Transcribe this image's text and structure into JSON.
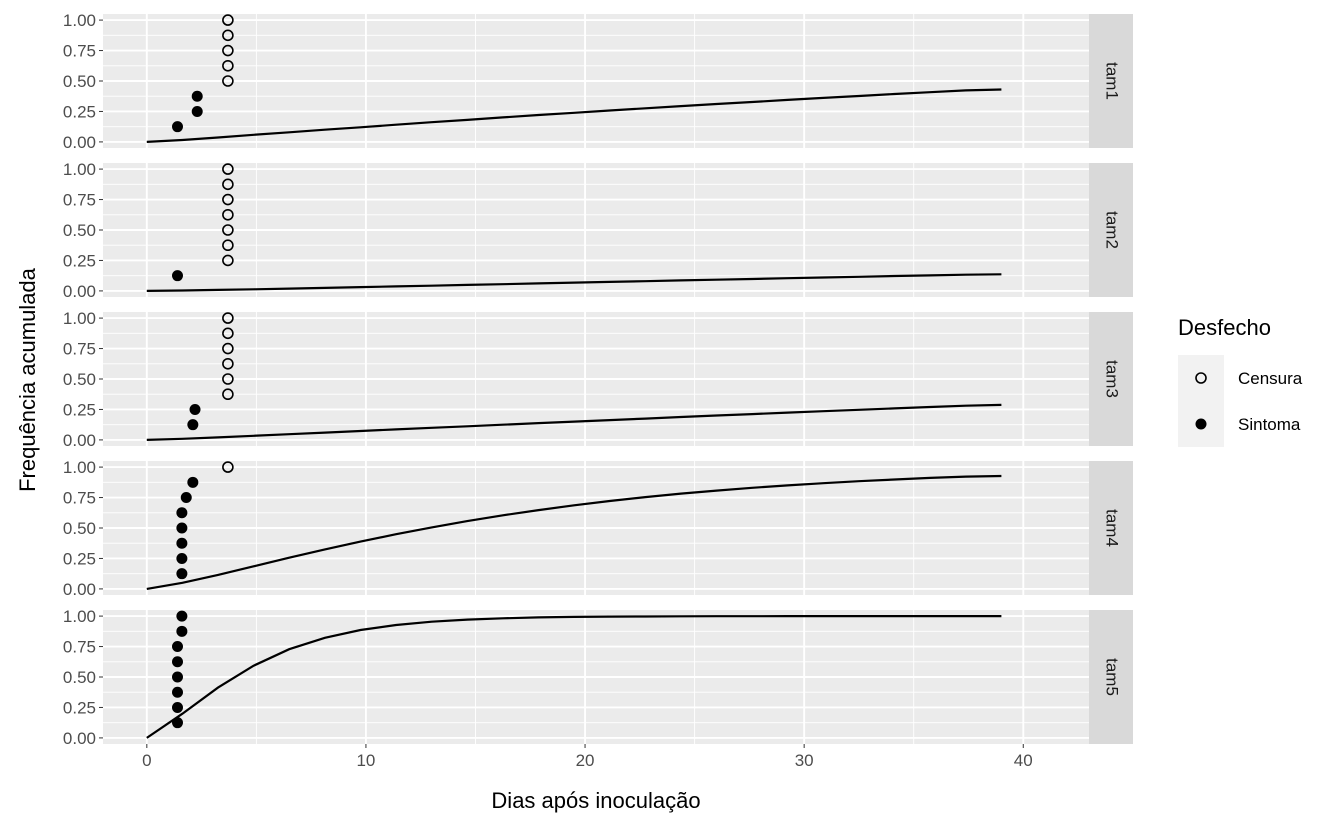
{
  "chart_data": {
    "type": "scatter",
    "xlabel": "Dias após inoculação",
    "ylabel": "Frequência acumulada",
    "xlim": [
      -2,
      43
    ],
    "ylim": [
      -0.05,
      1.05
    ],
    "x_ticks": [
      0,
      10,
      20,
      30,
      40
    ],
    "y_ticks": [
      0.0,
      0.25,
      0.5,
      0.75,
      1.0
    ],
    "x_tick_labels": [
      "0",
      "10",
      "20",
      "30",
      "40"
    ],
    "y_tick_labels": [
      "0.00",
      "0.25",
      "0.50",
      "0.75",
      "1.00"
    ],
    "grid": true,
    "legend": {
      "title": "Desfecho",
      "placement": "right",
      "entries": [
        {
          "label": "Censura",
          "marker": "open-circle"
        },
        {
          "label": "Sintoma",
          "marker": "filled-circle"
        }
      ]
    },
    "colors": {
      "panel_bg": "#ebebeb",
      "grid": "#ffffff",
      "strip_bg": "#d9d9d9",
      "line": "#000000",
      "point": "#000000"
    },
    "panels": [
      {
        "name": "tam1",
        "censura": [
          [
            3.7,
            0.5
          ],
          [
            3.7,
            0.625
          ],
          [
            3.7,
            0.75
          ],
          [
            3.7,
            0.875
          ],
          [
            3.7,
            1.0
          ]
        ],
        "sintoma": [
          [
            1.4,
            0.125
          ],
          [
            2.3,
            0.25
          ],
          [
            2.3,
            0.375
          ]
        ],
        "curve": {
          "x_max": 39,
          "y": [
            0.0,
            0.016,
            0.036,
            0.058,
            0.079,
            0.1,
            0.12,
            0.141,
            0.162,
            0.181,
            0.201,
            0.221,
            0.239,
            0.258,
            0.276,
            0.294,
            0.311,
            0.328,
            0.345,
            0.361,
            0.377,
            0.393,
            0.408,
            0.423,
            0.43
          ]
        }
      },
      {
        "name": "tam2",
        "censura": [
          [
            3.7,
            0.25
          ],
          [
            3.7,
            0.375
          ],
          [
            3.7,
            0.5
          ],
          [
            3.7,
            0.625
          ],
          [
            3.7,
            0.75
          ],
          [
            3.7,
            0.875
          ],
          [
            3.7,
            1.0
          ]
        ],
        "sintoma": [
          [
            1.4,
            0.125
          ]
        ],
        "curve": {
          "x_max": 39,
          "y": [
            0.0,
            0.003,
            0.008,
            0.013,
            0.019,
            0.025,
            0.031,
            0.037,
            0.043,
            0.049,
            0.055,
            0.062,
            0.068,
            0.074,
            0.08,
            0.086,
            0.092,
            0.098,
            0.104,
            0.11,
            0.116,
            0.122,
            0.127,
            0.133,
            0.136
          ]
        }
      },
      {
        "name": "tam3",
        "censura": [
          [
            3.7,
            0.375
          ],
          [
            3.7,
            0.5
          ],
          [
            3.7,
            0.625
          ],
          [
            3.7,
            0.75
          ],
          [
            3.7,
            0.875
          ],
          [
            3.7,
            1.0
          ]
        ],
        "sintoma": [
          [
            2.1,
            0.125
          ],
          [
            2.2,
            0.25
          ]
        ],
        "curve": {
          "x_max": 39,
          "y": [
            0.0,
            0.009,
            0.021,
            0.034,
            0.047,
            0.06,
            0.073,
            0.086,
            0.099,
            0.112,
            0.125,
            0.138,
            0.15,
            0.163,
            0.175,
            0.188,
            0.2,
            0.212,
            0.224,
            0.236,
            0.247,
            0.259,
            0.27,
            0.281,
            0.287
          ]
        }
      },
      {
        "name": "tam4",
        "censura": [
          [
            3.7,
            1.0
          ]
        ],
        "sintoma": [
          [
            1.6,
            0.125
          ],
          [
            1.6,
            0.25
          ],
          [
            1.6,
            0.375
          ],
          [
            1.6,
            0.5
          ],
          [
            1.6,
            0.625
          ],
          [
            1.8,
            0.75
          ],
          [
            2.1,
            0.875
          ]
        ],
        "curve": {
          "x_max": 39,
          "y": [
            0.0,
            0.05,
            0.115,
            0.186,
            0.256,
            0.324,
            0.388,
            0.449,
            0.505,
            0.557,
            0.604,
            0.647,
            0.686,
            0.722,
            0.754,
            0.782,
            0.807,
            0.83,
            0.85,
            0.868,
            0.884,
            0.898,
            0.911,
            0.922,
            0.927
          ]
        }
      },
      {
        "name": "tam5",
        "censura": [],
        "sintoma": [
          [
            1.4,
            0.125
          ],
          [
            1.4,
            0.25
          ],
          [
            1.4,
            0.375
          ],
          [
            1.4,
            0.5
          ],
          [
            1.4,
            0.625
          ],
          [
            1.4,
            0.75
          ],
          [
            1.6,
            0.875
          ],
          [
            1.6,
            1.0
          ]
        ],
        "curve": {
          "x_max": 39,
          "y": [
            0.0,
            0.199,
            0.413,
            0.593,
            0.728,
            0.822,
            0.886,
            0.927,
            0.954,
            0.971,
            0.982,
            0.989,
            0.993,
            0.996,
            0.997,
            0.998,
            0.999,
            0.999,
            1.0,
            1.0,
            1.0,
            1.0,
            1.0,
            1.0,
            1.0
          ]
        }
      }
    ]
  }
}
